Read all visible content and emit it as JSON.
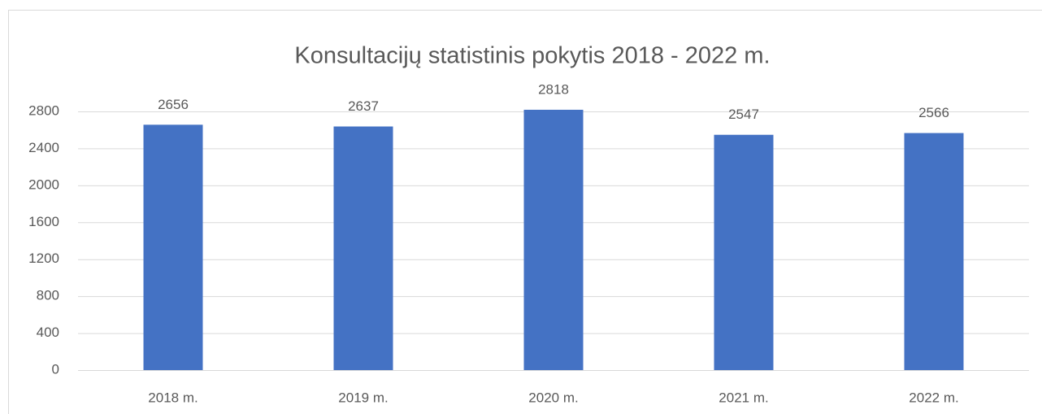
{
  "chart_data": {
    "type": "bar",
    "title": "Konsultacijų statistinis pokytis 2018 - 2022 m.",
    "categories": [
      "2018 m.",
      "2019 m.",
      "2020 m.",
      "2021 m.",
      "2022 m."
    ],
    "values": [
      2656,
      2637,
      2818,
      2547,
      2566
    ],
    "color": "#4472c4",
    "ylim": [
      0,
      2800
    ],
    "yticks": [
      0,
      400,
      800,
      1200,
      1600,
      2000,
      2400,
      2800
    ],
    "grid": true
  }
}
